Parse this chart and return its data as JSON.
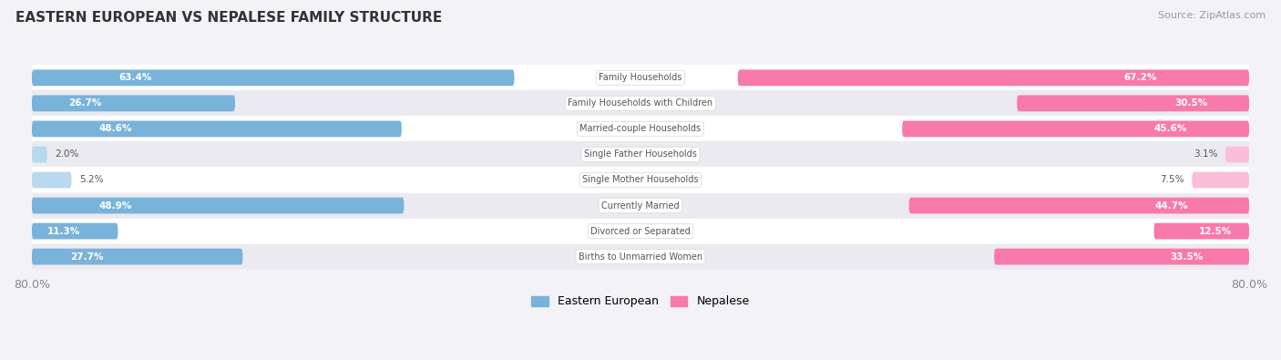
{
  "title": "EASTERN EUROPEAN VS NEPALESE FAMILY STRUCTURE",
  "source": "Source: ZipAtlas.com",
  "categories": [
    "Family Households",
    "Family Households with Children",
    "Married-couple Households",
    "Single Father Households",
    "Single Mother Households",
    "Currently Married",
    "Divorced or Separated",
    "Births to Unmarried Women"
  ],
  "eastern_european": [
    63.4,
    26.7,
    48.6,
    2.0,
    5.2,
    48.9,
    11.3,
    27.7
  ],
  "nepalese": [
    67.2,
    30.5,
    45.6,
    3.1,
    7.5,
    44.7,
    12.5,
    33.5
  ],
  "max_val": 80.0,
  "color_eastern": "#7ab3d9",
  "color_nepalese": "#f87aaa",
  "color_eastern_light": "#b8d9ee",
  "color_nepalese_light": "#fbbed8",
  "bg_color": "#f2f2f7",
  "row_color_odd": "#ffffff",
  "row_color_even": "#eaeaf0",
  "label_color_dark": "#555555",
  "axis_label_color": "#888888",
  "title_color": "#333333",
  "source_color": "#999999",
  "center_label_bg": "#ffffff",
  "center_label_edge": "#dddddd"
}
